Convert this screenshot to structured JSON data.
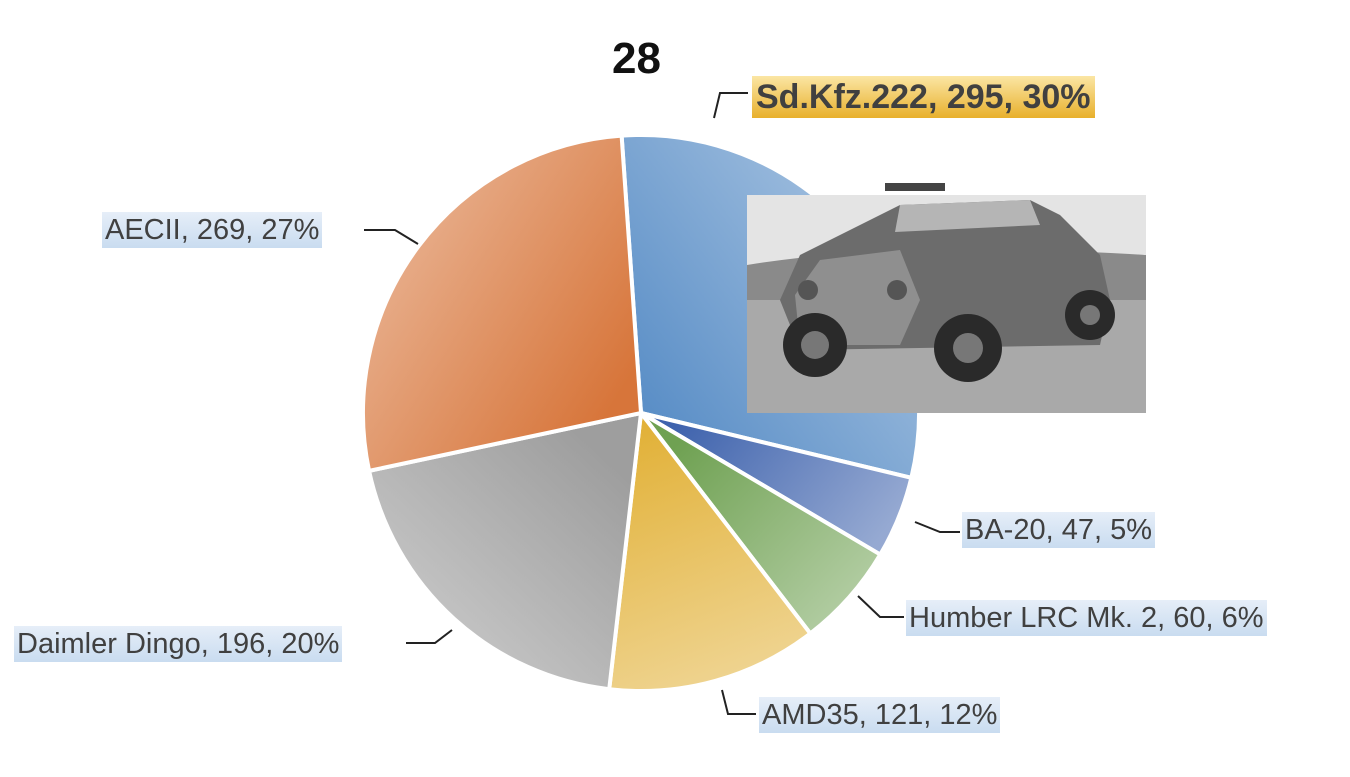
{
  "chart_data": {
    "type": "pie",
    "title": "28",
    "slices": [
      {
        "label": "Sd.Kfz.222",
        "value": 295,
        "percent": "30%",
        "color": "#5b8fc7",
        "highlighted": true
      },
      {
        "label": "BA-20",
        "value": 47,
        "percent": "5%",
        "color": "#3f63ad"
      },
      {
        "label": "Humber LRC Mk. 2",
        "value": 60,
        "percent": "6%",
        "color": "#6fa152"
      },
      {
        "label": "AMD35",
        "value": 121,
        "percent": "12%",
        "color": "#e2b23a"
      },
      {
        "label": "Daimler Dingo",
        "value": 196,
        "percent": "20%",
        "color": "#9e9e9e"
      },
      {
        "label": "AECII",
        "value": 269,
        "percent": "27%",
        "color": "#d7753a"
      }
    ],
    "data_labels": [
      "Sd.Kfz.222, 295, 30%",
      "BA-20, 47, 5%",
      "Humber LRC Mk. 2, 60, 6%",
      "AMD35, 121, 12%",
      "Daimler Dingo, 196, 20%",
      "AECII, 269, 27%"
    ],
    "image": "armored-car-photo"
  }
}
